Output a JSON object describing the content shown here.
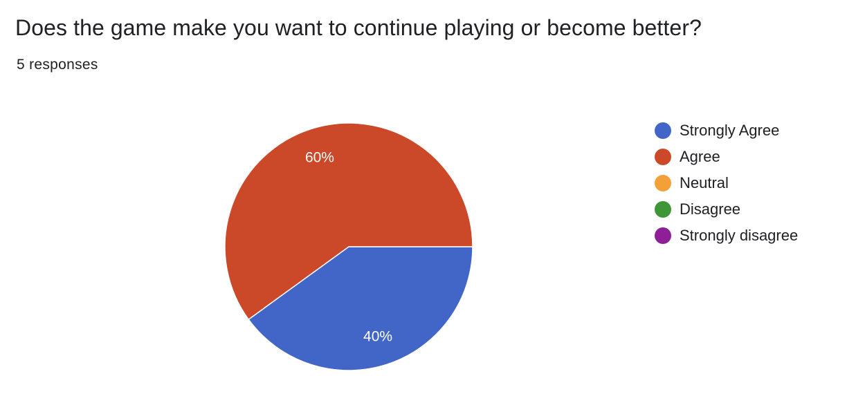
{
  "header": {
    "title": "Does the game make you want to continue playing or become better?",
    "responses": "5 responses"
  },
  "chart_data": {
    "type": "pie",
    "categories": [
      "Strongly Agree",
      "Agree",
      "Neutral",
      "Disagree",
      "Strongly disagree"
    ],
    "values": [
      40,
      60,
      0,
      0,
      0
    ],
    "labels": [
      "40%",
      "60%",
      "",
      "",
      ""
    ],
    "colors": [
      "#4166c7",
      "#cb4828",
      "#f4a038",
      "#3e9637",
      "#8e1f97"
    ],
    "legend_position": "right"
  }
}
